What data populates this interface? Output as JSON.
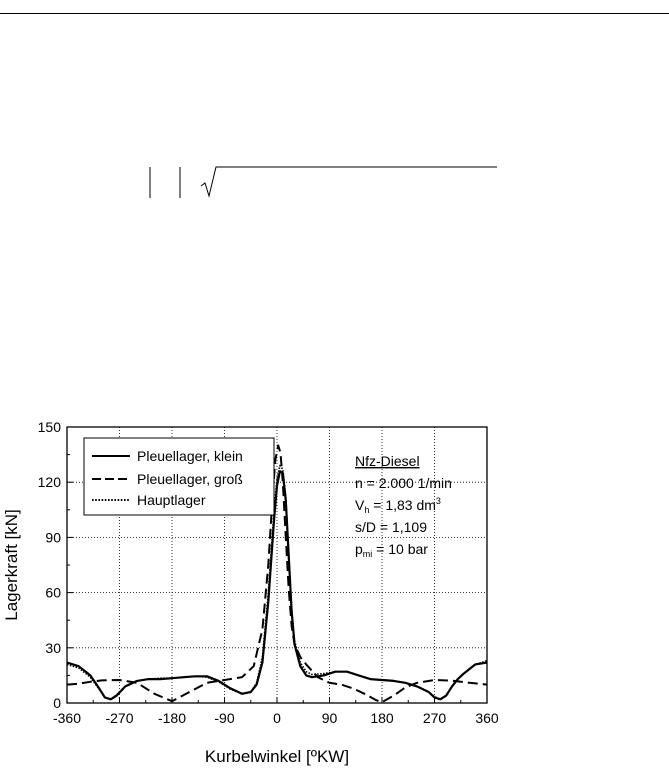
{
  "chart_data": {
    "type": "line",
    "xlabel": "Kurbelwinkel [ºKW]",
    "ylabel": "Lagerkraft [kN]",
    "xlim": [
      -360,
      360
    ],
    "ylim": [
      0,
      150
    ],
    "xticks": [
      "-360",
      "-270",
      "-180",
      "-90",
      "0",
      "90",
      "180",
      "270",
      "360"
    ],
    "yticks": [
      "0",
      "30",
      "60",
      "90",
      "120",
      "150"
    ],
    "grid": "dotted",
    "legend_position": "top-left",
    "series": [
      {
        "name": "Pleuellager, klein",
        "style": "solid",
        "points": [
          [
            -360,
            22
          ],
          [
            -340,
            20
          ],
          [
            -320,
            15
          ],
          [
            -305,
            8
          ],
          [
            -295,
            3
          ],
          [
            -285,
            2
          ],
          [
            -275,
            4
          ],
          [
            -260,
            9
          ],
          [
            -240,
            12
          ],
          [
            -220,
            13
          ],
          [
            -200,
            13
          ],
          [
            -180,
            13.5
          ],
          [
            -160,
            14
          ],
          [
            -140,
            14.5
          ],
          [
            -120,
            14.5
          ],
          [
            -100,
            12
          ],
          [
            -80,
            8
          ],
          [
            -60,
            5
          ],
          [
            -45,
            6
          ],
          [
            -35,
            10
          ],
          [
            -25,
            22
          ],
          [
            -15,
            55
          ],
          [
            -5,
            100
          ],
          [
            0,
            118
          ],
          [
            5,
            126
          ],
          [
            10,
            125
          ],
          [
            15,
            110
          ],
          [
            20,
            80
          ],
          [
            25,
            50
          ],
          [
            30,
            32
          ],
          [
            40,
            20
          ],
          [
            50,
            15
          ],
          [
            60,
            14
          ],
          [
            80,
            15
          ],
          [
            100,
            17
          ],
          [
            120,
            17
          ],
          [
            140,
            15
          ],
          [
            160,
            13
          ],
          [
            180,
            12.5
          ],
          [
            200,
            12
          ],
          [
            220,
            11
          ],
          [
            240,
            9
          ],
          [
            260,
            6
          ],
          [
            270,
            3
          ],
          [
            280,
            2
          ],
          [
            290,
            4
          ],
          [
            300,
            9
          ],
          [
            310,
            13
          ],
          [
            320,
            16
          ],
          [
            340,
            21
          ],
          [
            360,
            22
          ]
        ]
      },
      {
        "name": "Pleuellager, groß",
        "style": "dashed",
        "points": [
          [
            -360,
            10
          ],
          [
            -340,
            10.5
          ],
          [
            -320,
            11.5
          ],
          [
            -300,
            12.3
          ],
          [
            -270,
            12.5
          ],
          [
            -240,
            11
          ],
          [
            -210,
            5
          ],
          [
            -180,
            1
          ],
          [
            -150,
            6
          ],
          [
            -120,
            11
          ],
          [
            -90,
            12.5
          ],
          [
            -60,
            14
          ],
          [
            -40,
            20
          ],
          [
            -25,
            40
          ],
          [
            -15,
            75
          ],
          [
            -8,
            110
          ],
          [
            -3,
            132
          ],
          [
            2,
            140
          ],
          [
            6,
            136
          ],
          [
            10,
            120
          ],
          [
            15,
            90
          ],
          [
            20,
            62
          ],
          [
            25,
            42
          ],
          [
            30,
            32
          ],
          [
            40,
            25
          ],
          [
            50,
            21
          ],
          [
            70,
            14
          ],
          [
            90,
            11
          ],
          [
            110,
            10
          ],
          [
            130,
            8
          ],
          [
            150,
            5
          ],
          [
            170,
            1.5
          ],
          [
            180,
            0.5
          ],
          [
            200,
            4
          ],
          [
            220,
            8.5
          ],
          [
            240,
            11
          ],
          [
            270,
            12.5
          ],
          [
            300,
            12.2
          ],
          [
            330,
            11
          ],
          [
            360,
            10
          ]
        ]
      },
      {
        "name": "Hauptlager",
        "style": "dotted",
        "points": [
          [
            -360,
            21
          ],
          [
            -340,
            19
          ],
          [
            -320,
            14
          ],
          [
            -305,
            7.5
          ],
          [
            -295,
            3
          ],
          [
            -285,
            2
          ],
          [
            -275,
            4.5
          ],
          [
            -260,
            9
          ],
          [
            -240,
            12
          ],
          [
            -220,
            13
          ],
          [
            -200,
            13.5
          ],
          [
            -180,
            13.5
          ],
          [
            -160,
            14
          ],
          [
            -140,
            14.5
          ],
          [
            -120,
            14
          ],
          [
            -100,
            11.5
          ],
          [
            -80,
            7.5
          ],
          [
            -60,
            5
          ],
          [
            -45,
            6
          ],
          [
            -35,
            11
          ],
          [
            -25,
            25
          ],
          [
            -15,
            60
          ],
          [
            -5,
            105
          ],
          [
            0,
            122
          ],
          [
            5,
            129
          ],
          [
            10,
            127
          ],
          [
            15,
            112
          ],
          [
            20,
            82
          ],
          [
            25,
            52
          ],
          [
            30,
            34
          ],
          [
            40,
            22
          ],
          [
            50,
            17
          ],
          [
            60,
            15.5
          ],
          [
            80,
            16
          ],
          [
            100,
            17
          ],
          [
            120,
            17
          ],
          [
            140,
            15
          ],
          [
            160,
            13
          ],
          [
            180,
            12.5
          ],
          [
            200,
            12
          ],
          [
            220,
            11
          ],
          [
            240,
            9
          ],
          [
            260,
            6
          ],
          [
            270,
            3.5
          ],
          [
            280,
            2
          ],
          [
            290,
            4
          ],
          [
            300,
            9
          ],
          [
            310,
            13
          ],
          [
            320,
            16
          ],
          [
            340,
            21
          ],
          [
            360,
            23
          ]
        ]
      }
    ],
    "annotation": {
      "engine": "Nfz-Diesel",
      "speed": "n = 2.000 1/min",
      "vh_main": "V",
      "vh_sub": "h",
      "vh_value": " = 1,83 dm",
      "vh_sup": "3",
      "ratio": "s/D = 1,109",
      "pmi_main": "p",
      "pmi_sub": "mi",
      "pmi_value": " = 10 bar"
    }
  }
}
